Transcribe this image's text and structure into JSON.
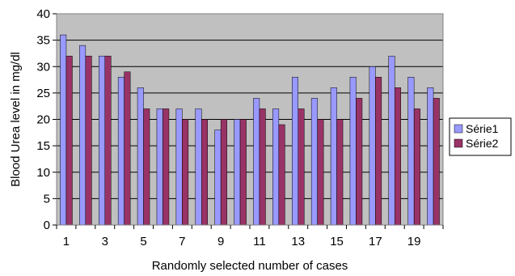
{
  "chart_data": {
    "type": "bar",
    "categories": [
      "1",
      "2",
      "3",
      "4",
      "5",
      "6",
      "7",
      "8",
      "9",
      "10",
      "11",
      "12",
      "13",
      "14",
      "15",
      "16",
      "17",
      "18",
      "19",
      "20"
    ],
    "x_tick_labels": [
      "1",
      "",
      "3",
      "",
      "5",
      "",
      "7",
      "",
      "9",
      "",
      "11",
      "",
      "13",
      "",
      "15",
      "",
      "17",
      "",
      "19",
      ""
    ],
    "series": [
      {
        "name": "Série1",
        "values": [
          36,
          34,
          32,
          28,
          26,
          22,
          22,
          22,
          18,
          20,
          24,
          22,
          28,
          24,
          26,
          28,
          30,
          32,
          28,
          26
        ]
      },
      {
        "name": "Série2",
        "values": [
          32,
          32,
          32,
          29,
          22,
          22,
          20,
          20,
          20,
          20,
          22,
          19,
          22,
          20,
          20,
          24,
          28,
          26,
          22,
          24
        ]
      }
    ],
    "xlabel": "Randomly selected number of cases",
    "ylabel": "Blood Urea level in mg/dl",
    "ylim": [
      0,
      40
    ],
    "yticks": [
      0,
      5,
      10,
      15,
      20,
      25,
      30,
      35,
      40
    ],
    "grid": true,
    "legend_position": "right",
    "colors": {
      "plot_background": "#c0c0c0",
      "series1": "#9999ff",
      "series2": "#993366",
      "gridline": "#000000"
    }
  }
}
